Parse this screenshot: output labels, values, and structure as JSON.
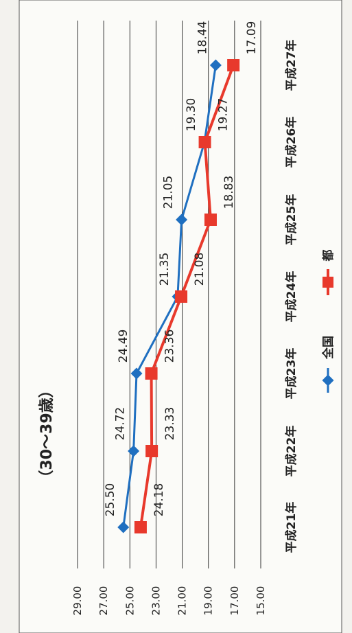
{
  "chart_data": {
    "type": "line",
    "title": "（30〜39歳）",
    "categories": [
      "平成21年",
      "平成22年",
      "平成23年",
      "平成24年",
      "平成25年",
      "平成26年",
      "平成27年"
    ],
    "series": [
      {
        "name": "全国",
        "values": [
          25.5,
          24.72,
          24.49,
          21.35,
          21.05,
          19.3,
          18.44
        ],
        "labels": [
          "25.50",
          "24.72",
          "24.49",
          "21.35",
          "21.05",
          "19.30",
          "18.44"
        ]
      },
      {
        "name": "都",
        "values": [
          24.18,
          23.33,
          23.36,
          21.08,
          18.83,
          19.27,
          17.09
        ],
        "labels": [
          "24.18",
          "23.33",
          "23.36",
          "21.08",
          "18.83",
          "19.27",
          "17.09"
        ]
      }
    ],
    "y_ticks": [
      "29.00",
      "27.00",
      "25.00",
      "23.00",
      "21.00",
      "19.00",
      "17.00",
      "15.00"
    ],
    "ylim": [
      15,
      29
    ],
    "grid": true,
    "legend_position": "bottom",
    "colors": {
      "全国": "#1f6fc0",
      "都": "#e8392c"
    }
  }
}
